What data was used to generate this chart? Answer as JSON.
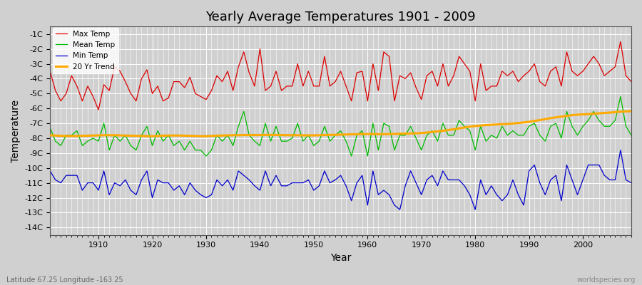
{
  "title": "Yearly Average Temperatures 1901 - 2009",
  "xlabel": "Year",
  "ylabel": "Temperature",
  "footnote_left": "Latitude 67.25 Longitude -163.25",
  "footnote_right": "worldspecies.org",
  "legend_labels": [
    "Max Temp",
    "Mean Temp",
    "Min Temp",
    "20 Yr Trend"
  ],
  "line_colors": [
    "#dd0000",
    "#00bb00",
    "#0000cc",
    "#ffaa00"
  ],
  "background_color": "#d8d8d8",
  "plot_bg_color": "#d8d8d8",
  "ylim": [
    -14.5,
    -0.5
  ],
  "ytick_vals": [
    -14,
    -13,
    -12,
    -11,
    -10,
    -9,
    -8,
    -7,
    -6,
    -5,
    -4,
    -3,
    -2,
    -1
  ],
  "xtick_vals": [
    1910,
    1920,
    1930,
    1940,
    1950,
    1960,
    1970,
    1980,
    1990,
    2000
  ],
  "years": [
    1901,
    1902,
    1903,
    1904,
    1905,
    1906,
    1907,
    1908,
    1909,
    1910,
    1911,
    1912,
    1913,
    1914,
    1915,
    1916,
    1917,
    1918,
    1919,
    1920,
    1921,
    1922,
    1923,
    1924,
    1925,
    1926,
    1927,
    1928,
    1929,
    1930,
    1931,
    1932,
    1933,
    1934,
    1935,
    1936,
    1937,
    1938,
    1939,
    1940,
    1941,
    1942,
    1943,
    1944,
    1945,
    1946,
    1947,
    1948,
    1949,
    1950,
    1951,
    1952,
    1953,
    1954,
    1955,
    1956,
    1957,
    1958,
    1959,
    1960,
    1961,
    1962,
    1963,
    1964,
    1965,
    1966,
    1967,
    1968,
    1969,
    1970,
    1971,
    1972,
    1973,
    1974,
    1975,
    1976,
    1977,
    1978,
    1979,
    1980,
    1981,
    1982,
    1983,
    1984,
    1985,
    1986,
    1987,
    1988,
    1989,
    1990,
    1991,
    1992,
    1993,
    1994,
    1995,
    1996,
    1997,
    1998,
    1999,
    2000,
    2001,
    2002,
    2003,
    2004,
    2005,
    2006,
    2007,
    2008,
    2009
  ],
  "max_temp": [
    -3.5,
    -4.8,
    -5.5,
    -5.0,
    -3.8,
    -4.5,
    -5.5,
    -4.5,
    -5.2,
    -6.1,
    -4.4,
    -4.8,
    -3.2,
    -3.5,
    -4.2,
    -5.0,
    -5.5,
    -4.0,
    -3.4,
    -5.0,
    -4.5,
    -5.5,
    -5.3,
    -4.2,
    -4.2,
    -4.6,
    -3.9,
    -5.0,
    -5.2,
    -5.4,
    -4.8,
    -3.8,
    -4.2,
    -3.5,
    -4.8,
    -3.2,
    -2.2,
    -3.6,
    -4.5,
    -2.0,
    -4.8,
    -4.5,
    -3.5,
    -4.8,
    -4.5,
    -4.5,
    -3.0,
    -4.5,
    -3.5,
    -4.5,
    -4.5,
    -2.5,
    -4.5,
    -4.2,
    -3.5,
    -4.5,
    -5.5,
    -3.6,
    -3.5,
    -5.5,
    -3.0,
    -4.8,
    -2.2,
    -2.5,
    -5.5,
    -3.8,
    -4.0,
    -3.6,
    -4.6,
    -5.4,
    -3.8,
    -3.5,
    -4.5,
    -3.0,
    -4.5,
    -3.8,
    -2.5,
    -3.0,
    -3.5,
    -5.5,
    -3.0,
    -4.8,
    -4.5,
    -4.5,
    -3.5,
    -3.8,
    -3.5,
    -4.2,
    -3.8,
    -3.5,
    -3.0,
    -4.2,
    -4.5,
    -3.5,
    -3.2,
    -4.5,
    -2.2,
    -3.5,
    -3.8,
    -3.5,
    -3.0,
    -2.5,
    -3.0,
    -3.8,
    -3.5,
    -3.2,
    -1.5,
    -3.8,
    -4.2
  ],
  "mean_temp": [
    -7.3,
    -8.2,
    -8.5,
    -7.8,
    -7.8,
    -7.5,
    -8.5,
    -8.2,
    -8.0,
    -8.2,
    -7.0,
    -8.8,
    -7.8,
    -8.2,
    -7.8,
    -8.5,
    -8.8,
    -7.8,
    -7.2,
    -8.5,
    -7.5,
    -8.2,
    -7.8,
    -8.5,
    -8.2,
    -8.8,
    -8.2,
    -8.8,
    -8.8,
    -9.2,
    -8.8,
    -7.8,
    -8.2,
    -7.8,
    -8.5,
    -7.2,
    -6.2,
    -7.8,
    -8.2,
    -8.5,
    -7.0,
    -8.2,
    -7.2,
    -8.2,
    -8.2,
    -8.0,
    -7.0,
    -8.2,
    -7.8,
    -8.5,
    -8.2,
    -7.2,
    -8.2,
    -7.8,
    -7.5,
    -8.2,
    -9.2,
    -7.8,
    -7.5,
    -9.2,
    -7.0,
    -8.8,
    -7.0,
    -7.2,
    -8.8,
    -7.8,
    -7.8,
    -7.2,
    -8.0,
    -8.8,
    -7.8,
    -7.5,
    -8.2,
    -7.0,
    -7.8,
    -7.8,
    -6.8,
    -7.2,
    -7.5,
    -8.8,
    -7.2,
    -8.2,
    -7.8,
    -8.0,
    -7.2,
    -7.8,
    -7.5,
    -7.8,
    -7.8,
    -7.2,
    -7.0,
    -7.8,
    -8.2,
    -7.2,
    -7.0,
    -8.0,
    -6.2,
    -7.2,
    -7.8,
    -7.2,
    -6.8,
    -6.2,
    -6.8,
    -7.2,
    -7.2,
    -6.8,
    -5.2,
    -7.2,
    -7.8
  ],
  "min_temp": [
    -10.2,
    -10.8,
    -11.0,
    -10.5,
    -10.5,
    -10.5,
    -11.5,
    -11.0,
    -11.0,
    -11.5,
    -10.2,
    -11.8,
    -11.0,
    -11.2,
    -10.8,
    -11.5,
    -11.8,
    -10.8,
    -10.2,
    -12.0,
    -10.8,
    -11.0,
    -11.0,
    -11.5,
    -11.2,
    -11.8,
    -11.0,
    -11.5,
    -11.8,
    -12.0,
    -11.8,
    -10.8,
    -11.2,
    -10.8,
    -11.5,
    -10.2,
    -10.5,
    -10.8,
    -11.2,
    -11.5,
    -10.2,
    -11.2,
    -10.5,
    -11.2,
    -11.2,
    -11.0,
    -11.0,
    -11.0,
    -10.8,
    -11.5,
    -11.2,
    -10.2,
    -11.0,
    -10.8,
    -10.5,
    -11.2,
    -12.2,
    -11.0,
    -10.5,
    -12.5,
    -10.2,
    -11.8,
    -11.5,
    -11.8,
    -12.5,
    -12.8,
    -11.2,
    -10.2,
    -11.0,
    -11.8,
    -10.8,
    -10.5,
    -11.2,
    -10.2,
    -10.8,
    -10.8,
    -10.8,
    -11.2,
    -11.8,
    -12.8,
    -10.8,
    -11.8,
    -11.2,
    -11.8,
    -12.2,
    -11.8,
    -10.8,
    -11.8,
    -12.5,
    -10.2,
    -9.8,
    -11.0,
    -11.8,
    -10.8,
    -10.5,
    -12.2,
    -9.8,
    -10.8,
    -11.8,
    -10.8,
    -9.8,
    -9.8,
    -9.8,
    -10.5,
    -10.8,
    -10.8,
    -8.8,
    -10.8,
    -11.0
  ],
  "trend": [
    -7.8,
    -7.82,
    -7.84,
    -7.85,
    -7.85,
    -7.85,
    -7.84,
    -7.83,
    -7.82,
    -7.81,
    -7.8,
    -7.8,
    -7.8,
    -7.81,
    -7.82,
    -7.83,
    -7.84,
    -7.85,
    -7.86,
    -7.86,
    -7.85,
    -7.83,
    -7.82,
    -7.82,
    -7.82,
    -7.83,
    -7.84,
    -7.85,
    -7.86,
    -7.86,
    -7.85,
    -7.83,
    -7.82,
    -7.81,
    -7.8,
    -7.8,
    -7.79,
    -7.79,
    -7.79,
    -7.79,
    -7.78,
    -7.78,
    -7.78,
    -7.79,
    -7.8,
    -7.8,
    -7.8,
    -7.81,
    -7.81,
    -7.81,
    -7.8,
    -7.79,
    -7.78,
    -7.77,
    -7.76,
    -7.75,
    -7.74,
    -7.73,
    -7.72,
    -7.72,
    -7.72,
    -7.73,
    -7.73,
    -7.72,
    -7.71,
    -7.7,
    -7.69,
    -7.68,
    -7.67,
    -7.65,
    -7.62,
    -7.58,
    -7.54,
    -7.5,
    -7.45,
    -7.4,
    -7.34,
    -7.28,
    -7.22,
    -7.18,
    -7.15,
    -7.12,
    -7.1,
    -7.08,
    -7.06,
    -7.04,
    -7.01,
    -6.98,
    -6.94,
    -6.9,
    -6.84,
    -6.78,
    -6.72,
    -6.65,
    -6.6,
    -6.55,
    -6.5,
    -6.45,
    -6.42,
    -6.4,
    -6.38,
    -6.35,
    -6.33,
    -6.3,
    -6.28,
    -6.25,
    -6.22,
    -6.2,
    -6.18
  ]
}
